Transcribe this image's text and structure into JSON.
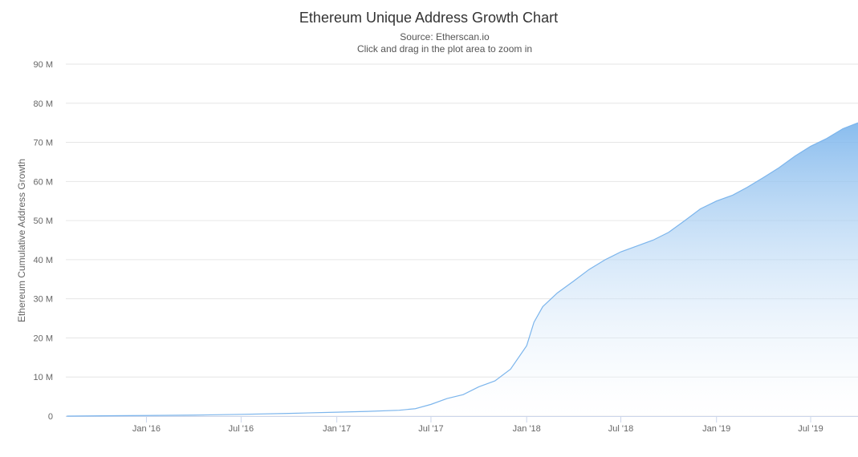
{
  "chart_data": {
    "type": "area",
    "title": "Ethereum Unique Address Growth Chart",
    "subtitle_source": "Source: Etherscan.io",
    "subtitle_hint": "Click and drag in the plot area to zoom in",
    "xlabel": "",
    "ylabel": "Ethereum Cumulative Address Growth",
    "ylim": [
      0,
      90000000
    ],
    "y_ticks": [
      0,
      10000000,
      20000000,
      30000000,
      40000000,
      50000000,
      60000000,
      70000000,
      80000000,
      90000000
    ],
    "y_tick_labels": [
      "0",
      "10 M",
      "20 M",
      "30 M",
      "40 M",
      "50 M",
      "60 M",
      "70 M",
      "80 M",
      "90 M"
    ],
    "xlim": [
      "2015-07-30",
      "2019-09-30"
    ],
    "x_ticks": [
      "2016-01-01",
      "2016-07-01",
      "2017-01-01",
      "2017-07-01",
      "2018-01-01",
      "2018-07-01",
      "2019-01-01",
      "2019-07-01"
    ],
    "x_tick_labels": [
      "Jan '16",
      "Jul '16",
      "Jan '17",
      "Jul '17",
      "Jan '18",
      "Jul '18",
      "Jan '19",
      "Jul '19"
    ],
    "grid": true,
    "legend": "none",
    "colors": {
      "line": "#7cb5ec",
      "fill_top": "#7cb5ec",
      "fill_bottom": "#ffffff",
      "grid": "#e6e6e6"
    },
    "series": [
      {
        "x": [
          "2015-08-01",
          "2015-11-01",
          "2016-01-01",
          "2016-04-01",
          "2016-07-01",
          "2016-10-01",
          "2017-01-01",
          "2017-03-01",
          "2017-05-01",
          "2017-06-01",
          "2017-07-01",
          "2017-08-01",
          "2017-09-01",
          "2017-10-01",
          "2017-11-01",
          "2017-12-01",
          "2018-01-01",
          "2018-01-15",
          "2018-02-01",
          "2018-03-01",
          "2018-04-01",
          "2018-05-01",
          "2018-06-01",
          "2018-07-01",
          "2018-08-01",
          "2018-09-01",
          "2018-10-01",
          "2018-11-01",
          "2018-12-01",
          "2019-01-01",
          "2019-02-01",
          "2019-03-01",
          "2019-04-01",
          "2019-05-01",
          "2019-06-01",
          "2019-07-01",
          "2019-08-01",
          "2019-09-01",
          "2019-09-30"
        ],
        "values": [
          0,
          100000,
          150000,
          250000,
          450000,
          700000,
          1000000,
          1200000,
          1500000,
          1900000,
          3000000,
          4500000,
          5500000,
          7500000,
          9000000,
          12000000,
          18000000,
          24000000,
          28000000,
          31500000,
          34500000,
          37500000,
          40000000,
          42000000,
          43500000,
          45000000,
          47000000,
          50000000,
          53000000,
          55000000,
          56500000,
          58500000,
          61000000,
          63500000,
          66500000,
          69000000,
          71000000,
          73500000,
          75000000
        ]
      }
    ]
  }
}
